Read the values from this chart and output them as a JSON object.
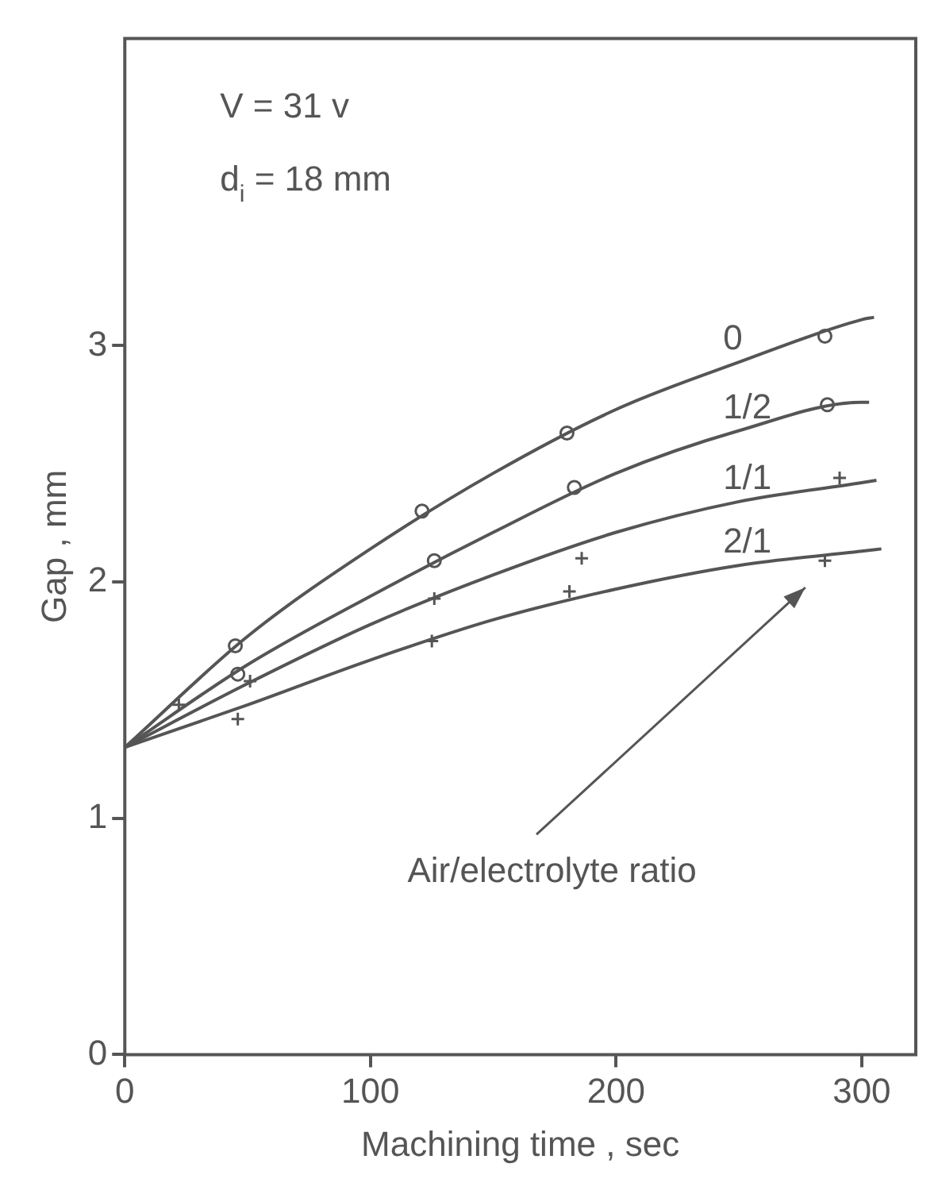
{
  "chart_data": {
    "type": "line",
    "xlabel": "Machining time , sec",
    "ylabel": "Gap , mm",
    "xlim": [
      0,
      322
    ],
    "xticks": [
      0,
      100,
      200,
      300
    ],
    "ylim": [
      0,
      4.3
    ],
    "yticks": [
      0,
      1,
      2,
      3
    ],
    "grid": false,
    "legend": false,
    "line_style": "solid",
    "annotations": [
      "V = 31 v",
      "d$_{i}$ = 18 mm",
      "Air/electrolyte ratio"
    ],
    "series": [
      {
        "name": "0",
        "color": "#555555",
        "marker": "none",
        "x": [
          0,
          50,
          100,
          150,
          200,
          250,
          300,
          305
        ],
        "values": [
          1.3,
          1.77,
          2.14,
          2.46,
          2.73,
          2.93,
          3.11,
          3.12
        ]
      },
      {
        "name": "1/2",
        "color": "#555555",
        "marker": "none",
        "x": [
          0,
          50,
          100,
          150,
          200,
          250,
          300,
          303
        ],
        "values": [
          1.3,
          1.65,
          1.94,
          2.21,
          2.46,
          2.64,
          2.76,
          2.76
        ]
      },
      {
        "name": "1/1",
        "color": "#555555",
        "marker": "none",
        "x": [
          0,
          50,
          100,
          150,
          200,
          250,
          300,
          306
        ],
        "values": [
          1.3,
          1.57,
          1.82,
          2.03,
          2.21,
          2.34,
          2.42,
          2.43
        ]
      },
      {
        "name": "2/1",
        "color": "#555555",
        "marker": "none",
        "x": [
          0,
          50,
          100,
          150,
          200,
          250,
          300,
          308
        ],
        "values": [
          1.3,
          1.48,
          1.67,
          1.84,
          1.97,
          2.07,
          2.13,
          2.14
        ]
      },
      {
        "type": "scatter",
        "color": "#555555",
        "marker": "circle",
        "x": [
          45,
          121,
          180,
          285
        ],
        "values": [
          1.73,
          2.3,
          2.63,
          3.04
        ]
      },
      {
        "type": "scatter",
        "color": "#555555",
        "marker": "circle",
        "x": [
          46,
          126,
          183,
          286
        ],
        "values": [
          1.61,
          2.09,
          2.4,
          2.75
        ]
      },
      {
        "type": "scatter",
        "color": "#555555",
        "marker": "cross",
        "x": [
          22,
          51,
          126,
          186,
          291
        ],
        "values": [
          1.48,
          1.58,
          1.93,
          2.1,
          2.44
        ]
      },
      {
        "type": "scatter",
        "color": "#555555",
        "marker": "cross",
        "x": [
          46,
          125,
          181,
          285
        ],
        "values": [
          1.42,
          1.75,
          1.96,
          2.09
        ]
      }
    ]
  }
}
